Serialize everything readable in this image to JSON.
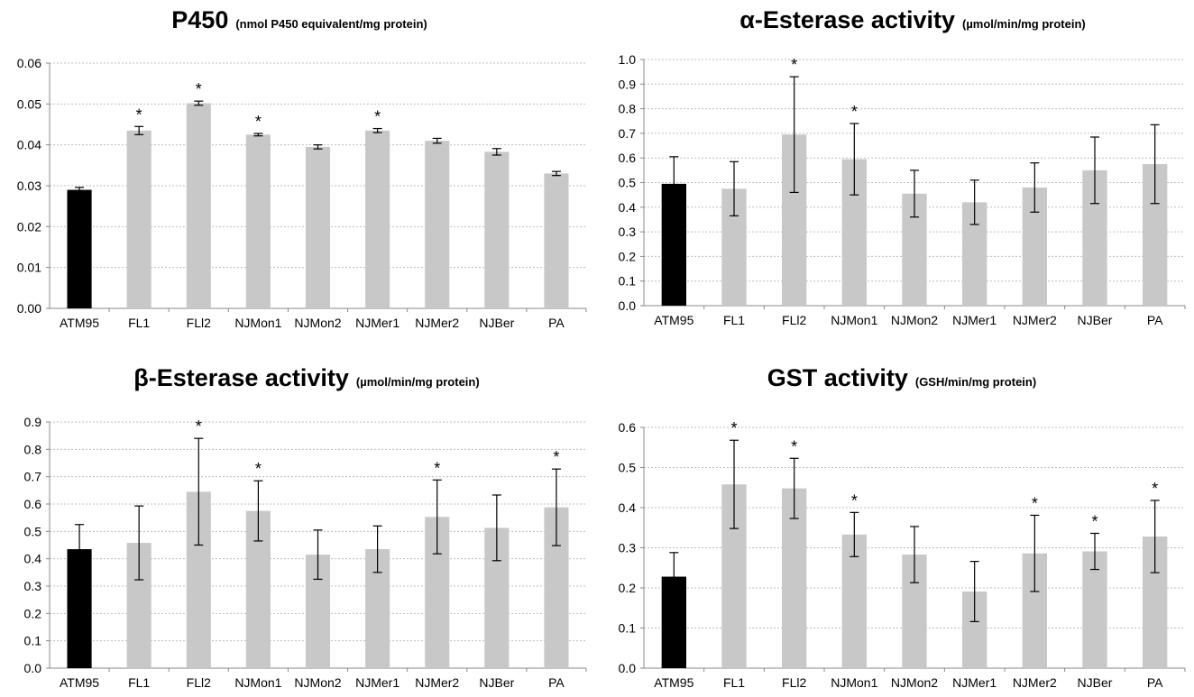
{
  "colors": {
    "control": "#000000",
    "bar": "#c8c8c8",
    "grid": "#bdbdbd",
    "axis": "#888888"
  },
  "chart_data": [
    {
      "type": "bar",
      "title": "P450",
      "subtitle": "(nmol P450 equivalent/mg protein)",
      "categories": [
        "ATM95",
        "FL1",
        "FLl2",
        "NJMon1",
        "NJMon2",
        "NJMer1",
        "NJMer2",
        "NJBer",
        "PA"
      ],
      "values": [
        0.029,
        0.0435,
        0.0502,
        0.0425,
        0.0395,
        0.0435,
        0.041,
        0.0383,
        0.033
      ],
      "errors": [
        0.0006,
        0.001,
        0.0005,
        0.0003,
        0.0005,
        0.0005,
        0.0006,
        0.0008,
        0.0005
      ],
      "significant": [
        false,
        true,
        true,
        true,
        false,
        true,
        false,
        false,
        false
      ],
      "star_label": "*",
      "ylim": [
        0,
        0.06
      ],
      "yticks": [
        "0.00",
        "0.01",
        "0.02",
        "0.03",
        "0.04",
        "0.05",
        "0.06"
      ],
      "grid": true
    },
    {
      "type": "bar",
      "title": "α-Esterase activity",
      "subtitle": "(µmol/min/mg protein)",
      "categories": [
        "ATM95",
        "FL1",
        "FLl2",
        "NJMon1",
        "NJMon2",
        "NJMer1",
        "NJMer2",
        "NJBer",
        "PA"
      ],
      "values": [
        0.495,
        0.475,
        0.695,
        0.595,
        0.455,
        0.42,
        0.48,
        0.55,
        0.575
      ],
      "errors": [
        0.11,
        0.11,
        0.235,
        0.145,
        0.095,
        0.09,
        0.1,
        0.135,
        0.16
      ],
      "significant": [
        false,
        false,
        true,
        true,
        false,
        false,
        false,
        false,
        false
      ],
      "star_label": "*",
      "ylim": [
        0,
        1.0
      ],
      "yticks": [
        "0.0",
        "0.1",
        "0.2",
        "0.3",
        "0.4",
        "0.5",
        "0.6",
        "0.7",
        "0.8",
        "0.9",
        "1.0"
      ],
      "grid": true
    },
    {
      "type": "bar",
      "title": "β-Esterase activity",
      "subtitle": "(µmol/min/mg protein)",
      "categories": [
        "ATM95",
        "FL1",
        "FLl2",
        "NJMon1",
        "NJMon2",
        "NJMer1",
        "NJMer2",
        "NJBer",
        "PA"
      ],
      "values": [
        0.435,
        0.458,
        0.645,
        0.575,
        0.415,
        0.435,
        0.553,
        0.513,
        0.588
      ],
      "errors": [
        0.09,
        0.135,
        0.195,
        0.11,
        0.09,
        0.085,
        0.135,
        0.12,
        0.14
      ],
      "significant": [
        false,
        false,
        true,
        true,
        false,
        false,
        true,
        false,
        true
      ],
      "star_label": "*",
      "ylim": [
        0,
        0.9
      ],
      "yticks": [
        "0.0",
        "0.1",
        "0.2",
        "0.3",
        "0.4",
        "0.5",
        "0.6",
        "0.7",
        "0.8",
        "0.9"
      ],
      "grid": true
    },
    {
      "type": "bar",
      "title": "GST activity",
      "subtitle": "(GSH/min/mg protein)",
      "categories": [
        "ATM95",
        "FL1",
        "FLl2",
        "NJMon1",
        "NJMon2",
        "NJMer1",
        "NJMer2",
        "NJBer",
        "PA"
      ],
      "values": [
        0.228,
        0.458,
        0.448,
        0.333,
        0.283,
        0.191,
        0.286,
        0.291,
        0.328
      ],
      "errors": [
        0.06,
        0.11,
        0.075,
        0.055,
        0.07,
        0.075,
        0.095,
        0.045,
        0.09
      ],
      "significant": [
        false,
        true,
        true,
        true,
        false,
        false,
        true,
        true,
        true
      ],
      "star_label": "*",
      "ylim": [
        0,
        0.6
      ],
      "yticks": [
        "0.0",
        "0.1",
        "0.2",
        "0.3",
        "0.4",
        "0.5",
        "0.6"
      ],
      "grid": true
    }
  ]
}
